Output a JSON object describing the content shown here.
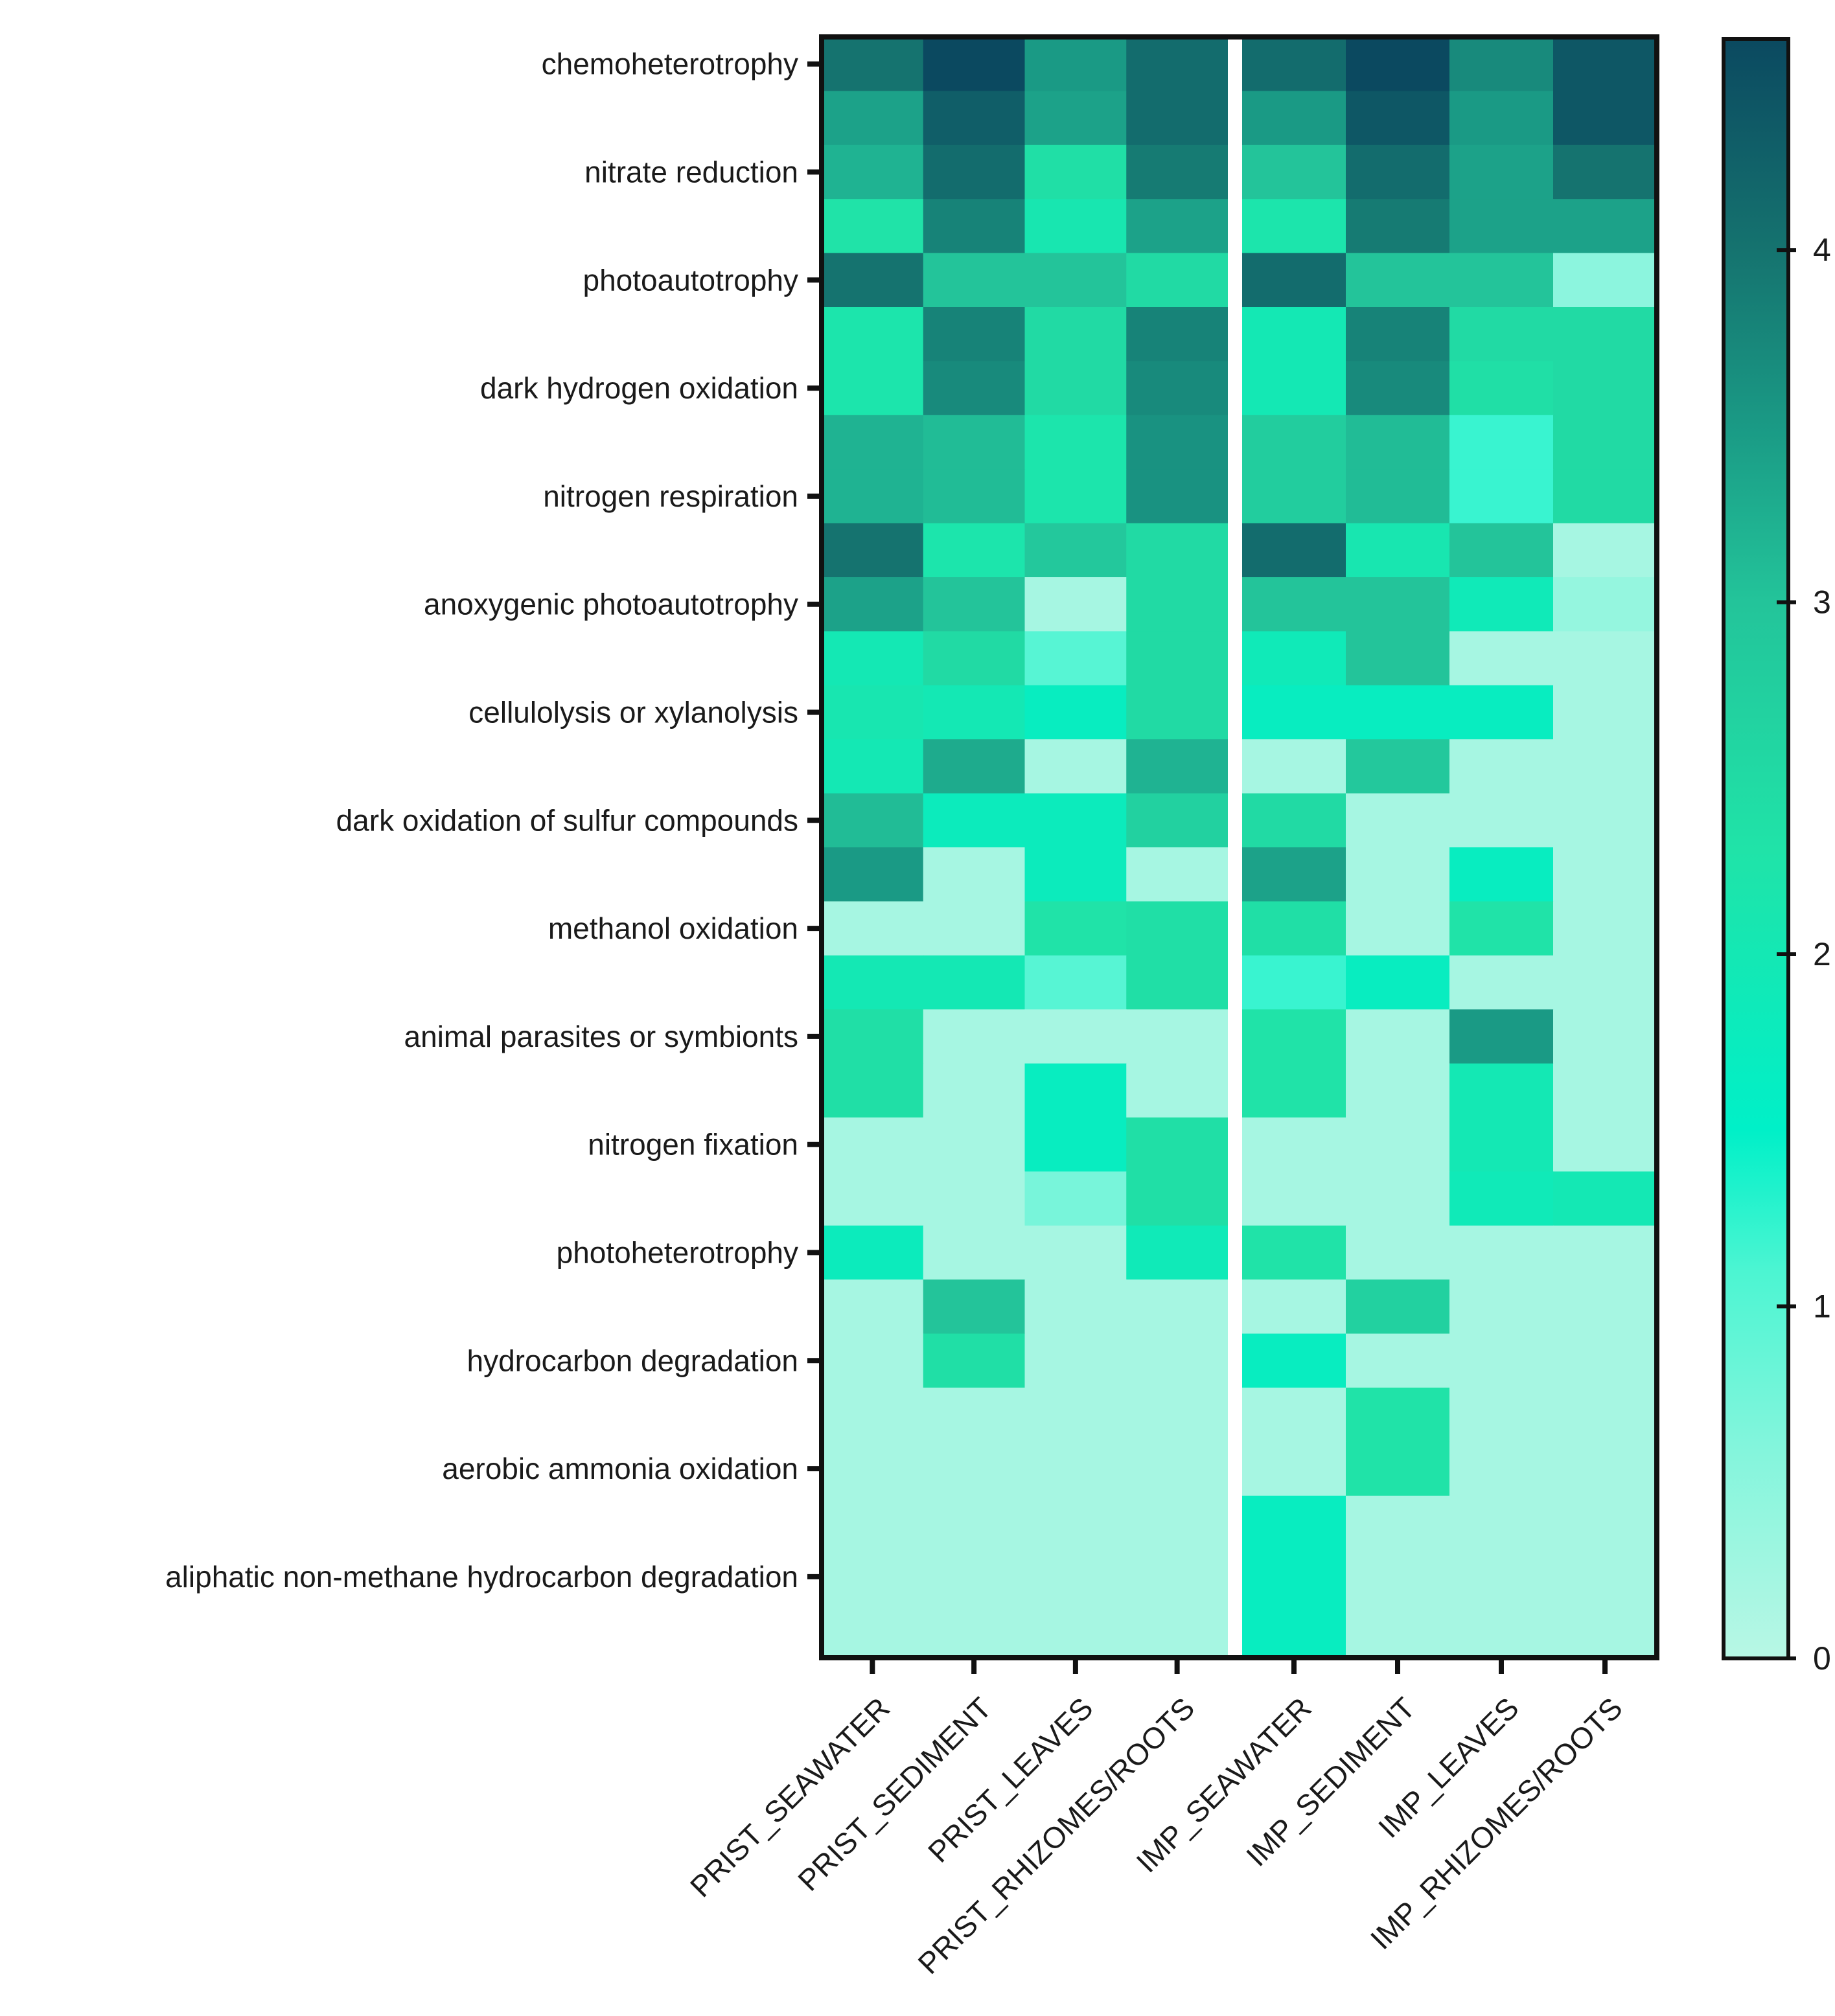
{
  "chart_data": {
    "type": "heatmap",
    "title": "",
    "xlabel": "",
    "ylabel": "",
    "columns": [
      "PRIST_SEAWATER",
      "PRIST_SEDIMENT",
      "PRIST_LEAVES",
      "PRIST_RHIZOMES/ROOTS",
      "IMP_SEAWATER",
      "IMP_SEDIMENT",
      "IMP_LEAVES",
      "IMP_RHIZOMES/ROOTS"
    ],
    "row_labels": [
      "chemoheterotrophy",
      "",
      "nitrate reduction",
      "",
      "photoautotrophy",
      "",
      "dark hydrogen oxidation",
      "",
      "nitrogen respiration",
      "",
      "anoxygenic photoautotrophy",
      "",
      "cellulolysis or xylanolysis",
      "",
      "dark oxidation of sulfur compounds",
      "",
      "methanol oxidation",
      "",
      "animal parasites or symbionts",
      "",
      "nitrogen fixation",
      "",
      "photoheterotrophy",
      "",
      "hydrocarbon degradation",
      "",
      "aerobic ammonia oxidation",
      "",
      "aliphatic non-methane hydrocarbon degradation",
      ""
    ],
    "values": [
      [
        4.0,
        4.6,
        3.5,
        4.1,
        4.1,
        4.6,
        3.7,
        4.4
      ],
      [
        3.4,
        4.3,
        3.4,
        4.1,
        3.5,
        4.4,
        3.5,
        4.4
      ],
      [
        3.2,
        4.1,
        2.4,
        3.9,
        3.0,
        4.1,
        3.4,
        4.0
      ],
      [
        2.3,
        3.8,
        2.1,
        3.4,
        2.2,
        3.9,
        3.4,
        3.4
      ],
      [
        4.0,
        3.0,
        3.0,
        2.5,
        4.1,
        3.0,
        3.0,
        0.5
      ],
      [
        2.2,
        3.8,
        2.5,
        3.8,
        2.0,
        3.8,
        2.5,
        2.5
      ],
      [
        2.2,
        3.7,
        2.5,
        3.7,
        2.0,
        3.7,
        2.4,
        2.5
      ],
      [
        3.2,
        3.1,
        2.2,
        3.6,
        2.8,
        3.1,
        1.2,
        2.5
      ],
      [
        3.2,
        3.1,
        2.2,
        3.6,
        2.8,
        3.1,
        1.2,
        2.5
      ],
      [
        4.0,
        2.2,
        2.9,
        2.5,
        4.1,
        2.1,
        3.0,
        0.2
      ],
      [
        3.4,
        3.0,
        0.2,
        2.5,
        3.0,
        3.0,
        1.9,
        0.4
      ],
      [
        2.0,
        2.5,
        1.0,
        2.5,
        1.9,
        3.0,
        0.2,
        0.2
      ],
      [
        2.1,
        2.0,
        1.7,
        2.5,
        1.7,
        1.7,
        1.7,
        0.2
      ],
      [
        2.0,
        3.3,
        0.2,
        3.2,
        0.2,
        2.9,
        0.2,
        0.2
      ],
      [
        3.1,
        1.8,
        1.8,
        2.7,
        2.5,
        0.2,
        0.2,
        0.2
      ],
      [
        3.5,
        0.2,
        1.8,
        0.2,
        3.4,
        0.2,
        1.7,
        0.2
      ],
      [
        0.2,
        0.2,
        2.3,
        2.4,
        2.4,
        0.2,
        2.3,
        0.2
      ],
      [
        2.0,
        2.0,
        1.0,
        2.4,
        1.2,
        1.7,
        0.2,
        0.2
      ],
      [
        2.4,
        0.2,
        0.2,
        0.2,
        2.3,
        0.2,
        3.5,
        0.2
      ],
      [
        2.4,
        0.2,
        1.7,
        0.2,
        2.3,
        0.2,
        2.0,
        0.2
      ],
      [
        0.2,
        0.2,
        1.7,
        2.4,
        0.2,
        0.2,
        2.0,
        0.2
      ],
      [
        0.2,
        0.2,
        0.7,
        2.4,
        0.2,
        0.2,
        1.9,
        2.0
      ],
      [
        1.8,
        0.2,
        0.2,
        1.9,
        2.3,
        0.2,
        0.2,
        0.2
      ],
      [
        0.2,
        3.0,
        0.2,
        0.2,
        0.2,
        2.7,
        0.2,
        0.2
      ],
      [
        0.2,
        2.4,
        0.2,
        0.2,
        1.7,
        0.2,
        0.2,
        0.2
      ],
      [
        0.2,
        0.2,
        0.2,
        0.2,
        0.2,
        2.3,
        0.2,
        0.2
      ],
      [
        0.2,
        0.2,
        0.2,
        0.2,
        0.2,
        2.3,
        0.2,
        0.2
      ],
      [
        0.2,
        0.2,
        0.2,
        0.2,
        1.7,
        0.2,
        0.2,
        0.2
      ],
      [
        0.2,
        0.2,
        0.2,
        0.2,
        1.7,
        0.2,
        0.2,
        0.2
      ],
      [
        0.2,
        0.2,
        0.2,
        0.2,
        1.7,
        0.2,
        0.2,
        0.2
      ]
    ],
    "colorbar": {
      "min": 0,
      "max": 4.6,
      "ticks": [
        "0",
        "1",
        "2",
        "3",
        "4"
      ],
      "tick_values": [
        0,
        1,
        2,
        3,
        4
      ],
      "colors": [
        {
          "v": 0.0,
          "c": "#b8f7e5"
        },
        {
          "v": 0.6,
          "c": "#83f5dc"
        },
        {
          "v": 1.1,
          "c": "#4cf5d2"
        },
        {
          "v": 1.5,
          "c": "#00f0c8"
        },
        {
          "v": 2.3,
          "c": "#20e3a8"
        },
        {
          "v": 3.0,
          "c": "#23c49a"
        },
        {
          "v": 3.5,
          "c": "#1a9a85"
        },
        {
          "v": 4.0,
          "c": "#15736f"
        },
        {
          "v": 4.6,
          "c": "#0b4960"
        }
      ]
    }
  }
}
